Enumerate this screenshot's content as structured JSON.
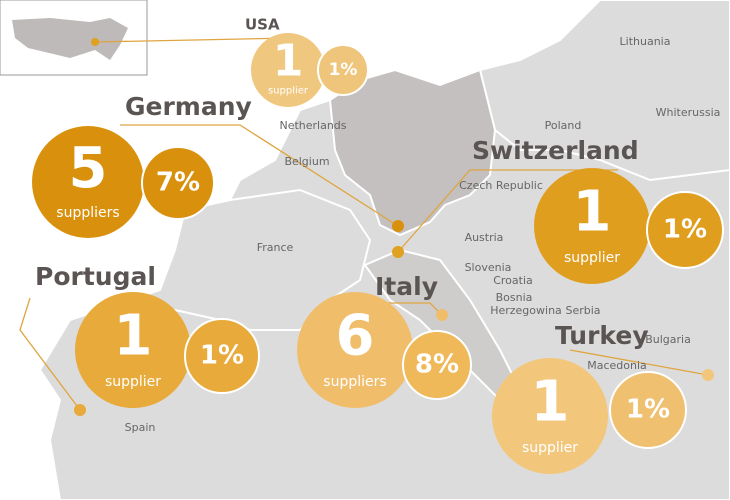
{
  "inset": {
    "label": "USA"
  },
  "countries": [
    {
      "name": "USA",
      "count": "1",
      "unit": "supplier",
      "share": "1%"
    },
    {
      "name": "Germany",
      "count": "5",
      "unit": "suppliers",
      "share": "7%"
    },
    {
      "name": "Switzerland",
      "count": "1",
      "unit": "supplier",
      "share": "1%"
    },
    {
      "name": "Portugal",
      "count": "1",
      "unit": "supplier",
      "share": "1%"
    },
    {
      "name": "Italy",
      "count": "6",
      "unit": "suppliers",
      "share": "8%"
    },
    {
      "name": "Turkey",
      "count": "1",
      "unit": "supplier",
      "share": "1%"
    }
  ],
  "map_labels": [
    "Lithuania",
    "Whiterussia",
    "Poland",
    "Netherlands",
    "Belgium",
    "France",
    "Czech Republic",
    "Austria",
    "Slovenia",
    "Croatia",
    "Bosnia",
    "Herzegowina",
    "Serbia",
    "Bulgaria",
    "Macedonia",
    "Spain"
  ]
}
